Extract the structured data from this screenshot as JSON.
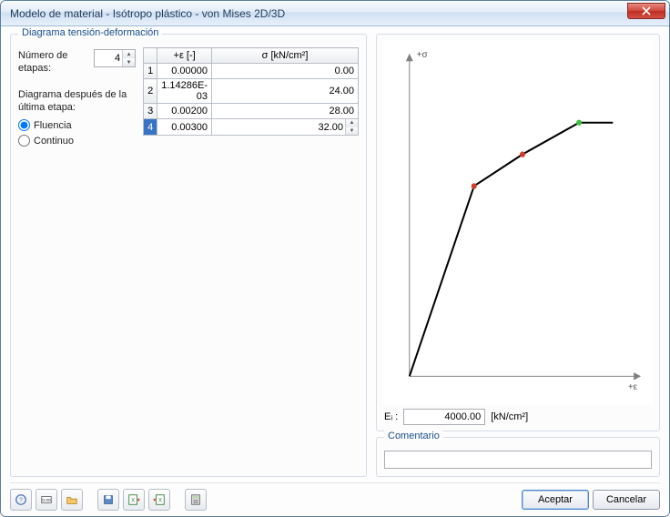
{
  "window": {
    "title": "Modelo de material - Isótropo plástico - von Mises 2D/3D"
  },
  "left": {
    "group_title": "Diagrama tensión-deformación",
    "stages_label": "Número de etapas:",
    "stages_value": "4",
    "after_label": "Diagrama después de la última etapa:",
    "radio_yield": "Fluencia",
    "radio_continuous": "Continuo"
  },
  "table": {
    "col_epsilon": "+ε [-]",
    "col_sigma": "σ [kN/cm²]",
    "rows": [
      {
        "n": "1",
        "eps": "0.00000",
        "sig": "0.00"
      },
      {
        "n": "2",
        "eps": "1.14286E-03",
        "sig": "24.00"
      },
      {
        "n": "3",
        "eps": "0.00200",
        "sig": "28.00"
      },
      {
        "n": "4",
        "eps": "0.00300",
        "sig": "32.00"
      }
    ],
    "selected_index": 3
  },
  "chart": {
    "type": "line",
    "axis_y_label": "+σ",
    "axis_x_label": "+ε",
    "axis_color": "#808080",
    "background": "#ffffff",
    "line_color": "#000000",
    "line_width": 2,
    "tail_color": "#000000",
    "points_eps": [
      0,
      0.00114286,
      0.002,
      0.003
    ],
    "points_sig": [
      0,
      24,
      28,
      32
    ],
    "tail_to_eps": 0.0036,
    "marker_radius": 3,
    "marker_colors": [
      "none",
      "#d43b2a",
      "#d43b2a",
      "#3fbf3f"
    ],
    "xlim": [
      0,
      0.004
    ],
    "ylim": [
      0,
      40
    ]
  },
  "e_row": {
    "label": "Eᵢ :",
    "value": "4000.00",
    "unit": "[kN/cm²]"
  },
  "comment": {
    "legend": "Comentario",
    "value": ""
  },
  "footer": {
    "accept": "Aceptar",
    "cancel": "Cancelar"
  }
}
